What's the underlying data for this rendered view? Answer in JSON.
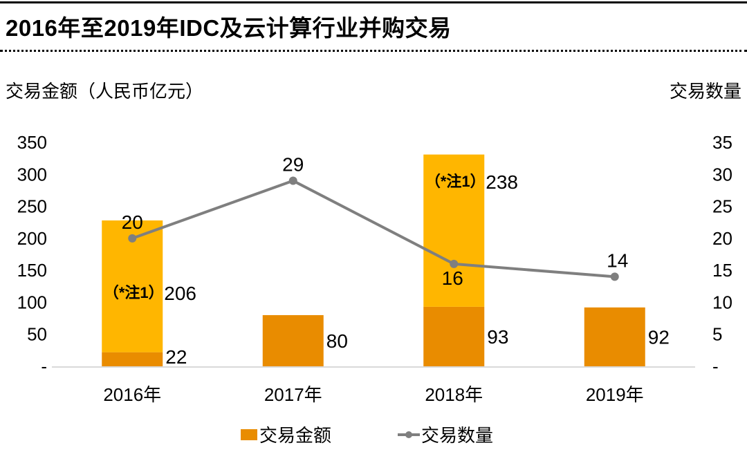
{
  "chart_data": {
    "type": "bar+line",
    "title": "2016年至2019年IDC及云计算行业并购交易",
    "categories": [
      "2016年",
      "2017年",
      "2018年",
      "2019年"
    ],
    "series": [
      {
        "name": "交易金额",
        "type": "stacked-bar",
        "axis": "left",
        "color": "#E98C00",
        "values": [
          22,
          80,
          93,
          92
        ]
      },
      {
        "name": "交易金额（*注1）",
        "type": "stacked-bar",
        "axis": "left",
        "color": "#FFB600",
        "values": [
          206,
          0,
          238,
          0
        ],
        "annotation": "（*注1）"
      },
      {
        "name": "交易数量",
        "type": "line",
        "axis": "right",
        "color": "#7F7F7F",
        "values": [
          20,
          29,
          16,
          14
        ]
      }
    ],
    "ylabel_left": "交易金额（人民币亿元）",
    "ylabel_right": "交易数量",
    "ylim_left": [
      0,
      350
    ],
    "ylim_right": [
      0,
      35
    ],
    "yticks_left": [
      "-",
      "50",
      "100",
      "150",
      "200",
      "250",
      "300",
      "350"
    ],
    "yticks_right": [
      "-",
      "5",
      "10",
      "15",
      "20",
      "25",
      "30",
      "35"
    ],
    "legend": [
      "交易金额",
      "交易数量"
    ],
    "legend_position": "bottom",
    "grid": false
  }
}
